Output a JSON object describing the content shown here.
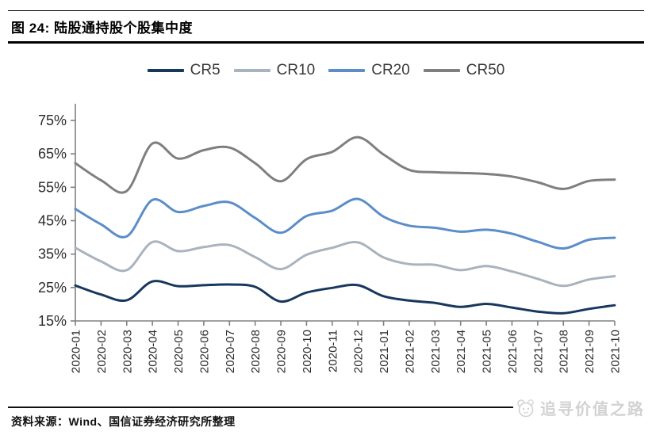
{
  "header": {
    "title": "图 24: 陆股通持股个股集中度"
  },
  "footer": {
    "source": "资料来源：Wind、国信证券经济研究所整理",
    "watermark": "追寻价值之路"
  },
  "chart_data": {
    "type": "line",
    "title": "陆股通持股个股集中度",
    "categories": [
      "2020-01",
      "2020-02",
      "2020-03",
      "2020-04",
      "2020-05",
      "2020-06",
      "2020-07",
      "2020-08",
      "2020-09",
      "2020-10",
      "2020-11",
      "2020-12",
      "2021-01",
      "2021-02",
      "2021-03",
      "2021-04",
      "2021-05",
      "2021-06",
      "2021-07",
      "2021-08",
      "2021-09",
      "2021-10"
    ],
    "series": [
      {
        "name": "CR5",
        "color": "#17375E",
        "values": [
          25.6,
          22.9,
          21.2,
          26.8,
          25.4,
          25.7,
          25.9,
          25.2,
          20.8,
          23.5,
          24.9,
          25.7,
          22.4,
          21.1,
          20.4,
          19.2,
          20.1,
          19.0,
          17.8,
          17.3,
          18.6,
          19.7
        ]
      },
      {
        "name": "CR10",
        "color": "#A9B3BD",
        "values": [
          36.9,
          32.8,
          30.2,
          38.6,
          35.9,
          37.1,
          37.7,
          34.1,
          30.5,
          34.8,
          36.9,
          38.5,
          34.0,
          32.0,
          31.8,
          30.2,
          31.4,
          29.8,
          27.6,
          25.5,
          27.4,
          28.4
        ]
      },
      {
        "name": "CR20",
        "color": "#5B8DC8",
        "values": [
          48.5,
          43.9,
          40.3,
          51.2,
          47.6,
          49.4,
          50.5,
          45.8,
          41.4,
          46.4,
          48.0,
          51.5,
          46.2,
          43.5,
          42.9,
          41.7,
          42.3,
          41.1,
          38.7,
          36.7,
          39.3,
          39.9
        ]
      },
      {
        "name": "CR50",
        "color": "#7F7F7F",
        "values": [
          62.2,
          57.1,
          53.9,
          68.1,
          63.6,
          66.1,
          66.9,
          62.2,
          56.8,
          63.4,
          65.6,
          70.0,
          64.8,
          60.2,
          59.5,
          59.3,
          59.0,
          58.2,
          56.5,
          54.5,
          56.9,
          57.3
        ]
      }
    ],
    "yticks": [
      15,
      25,
      35,
      45,
      55,
      65,
      75
    ],
    "ytick_suffix": "%",
    "ylim": [
      15,
      80
    ],
    "grid": false,
    "legend_position": "top",
    "axis_color": "#808080",
    "tick_label_color": "#2b2b2b"
  }
}
